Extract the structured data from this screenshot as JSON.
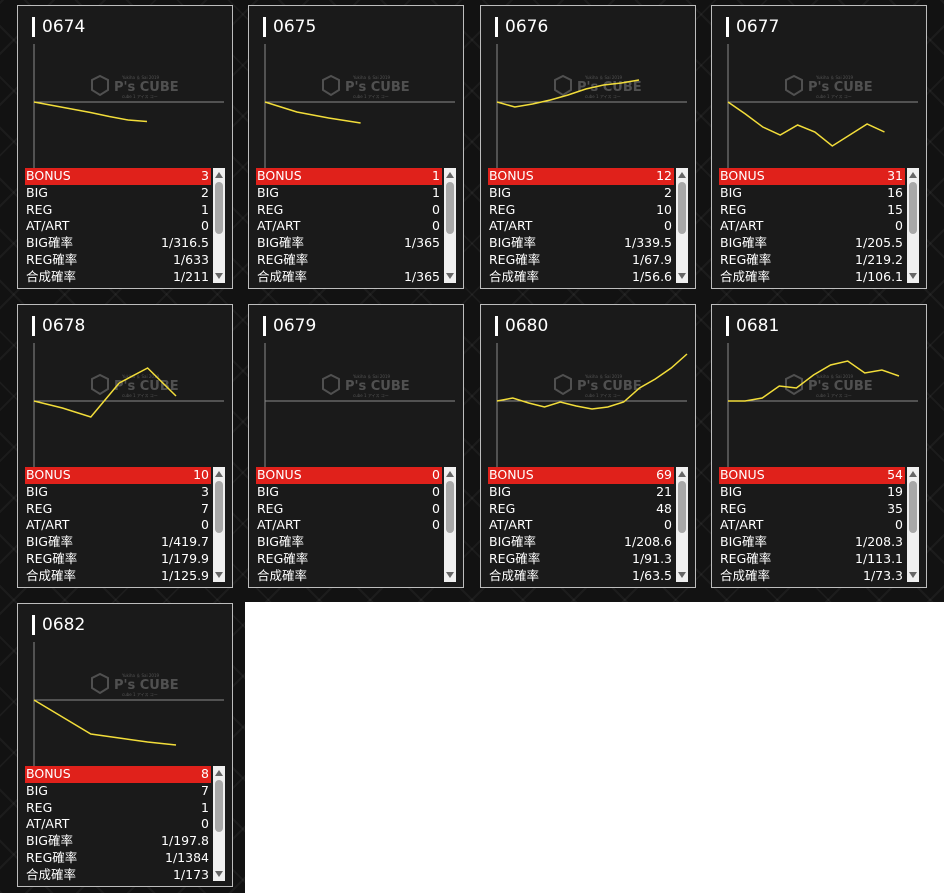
{
  "labels": [
    "BONUS",
    "BIG",
    "REG",
    "AT/ART",
    "BIG確率",
    "REG確率",
    "合成確率"
  ],
  "watermark": {
    "brand": "P's CUBE",
    "top_text": "Yukiha ＆ Sai 2019",
    "sub_text": "cube 1 アイス コー"
  },
  "colors": {
    "bonus_bg": "#e0211b",
    "line": "#f2dd3a",
    "axis": "#8a8a8a"
  },
  "cards": [
    {
      "id": "0674",
      "bonus": "3",
      "big": "2",
      "reg": "1",
      "atart": "0",
      "big_prob": "1/316.5",
      "reg_prob": "1/633",
      "total_prob": "1/211",
      "trend": [
        0,
        -3.5,
        -7,
        -10.5,
        -14.5,
        -18,
        -19.5
      ]
    },
    {
      "id": "0675",
      "bonus": "1",
      "big": "1",
      "reg": "0",
      "atart": "0",
      "big_prob": "1/365",
      "reg_prob": "",
      "total_prob": "1/365",
      "trend": [
        0,
        -10,
        -16,
        -21
      ]
    },
    {
      "id": "0676",
      "bonus": "12",
      "big": "2",
      "reg": "10",
      "atart": "0",
      "big_prob": "1/339.5",
      "reg_prob": "1/67.9",
      "total_prob": "1/56.6",
      "trend": [
        0,
        -5,
        -2,
        2,
        7,
        13,
        17,
        19,
        22
      ]
    },
    {
      "id": "0677",
      "bonus": "31",
      "big": "16",
      "reg": "15",
      "atart": "0",
      "big_prob": "1/205.5",
      "reg_prob": "1/219.2",
      "total_prob": "1/106.1",
      "trend": [
        0,
        -12,
        -25,
        -33,
        -23,
        -30,
        -44,
        -33,
        -22,
        -30
      ]
    },
    {
      "id": "0678",
      "bonus": "10",
      "big": "3",
      "reg": "7",
      "atart": "0",
      "big_prob": "1/419.7",
      "reg_prob": "1/179.9",
      "total_prob": "1/125.9",
      "trend": [
        0,
        -7,
        -16,
        18,
        33,
        5
      ]
    },
    {
      "id": "0679",
      "bonus": "0",
      "big": "0",
      "reg": "0",
      "atart": "0",
      "big_prob": "",
      "reg_prob": "",
      "total_prob": "",
      "trend": []
    },
    {
      "id": "0680",
      "bonus": "69",
      "big": "21",
      "reg": "48",
      "atart": "0",
      "big_prob": "1/208.6",
      "reg_prob": "1/91.3",
      "total_prob": "1/63.5",
      "trend": [
        0,
        3,
        -2,
        -6,
        -1,
        -5,
        -8,
        -6,
        -1,
        13,
        22,
        33,
        47
      ]
    },
    {
      "id": "0681",
      "bonus": "54",
      "big": "19",
      "reg": "35",
      "atart": "0",
      "big_prob": "1/208.3",
      "reg_prob": "1/113.1",
      "total_prob": "1/73.3",
      "trend": [
        0,
        0,
        3,
        15,
        13,
        26,
        36,
        40,
        28,
        31,
        25
      ]
    },
    {
      "id": "0682",
      "bonus": "8",
      "big": "7",
      "reg": "1",
      "atart": "0",
      "big_prob": "1/197.8",
      "reg_prob": "1/1384",
      "total_prob": "1/173",
      "trend": [
        0,
        -17,
        -34,
        -38,
        -42,
        -45
      ]
    }
  ]
}
